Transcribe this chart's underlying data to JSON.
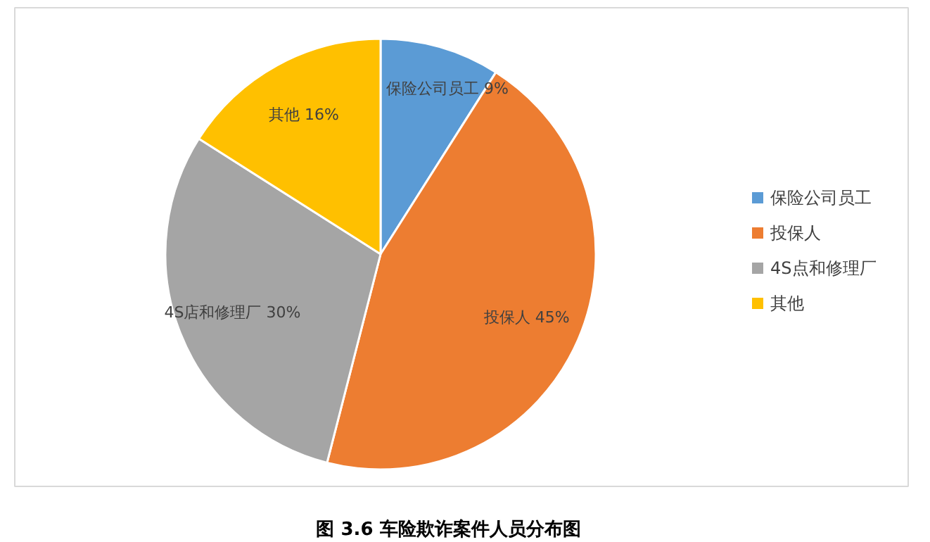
{
  "chart_data": {
    "type": "pie",
    "title": "图 3.6  车险欺诈案件人员分布图",
    "categories": [
      "保险公司员工",
      "投保人",
      "4S点和修理厂",
      "其他"
    ],
    "values": [
      9,
      45,
      30,
      16
    ],
    "colors": [
      "#5b9bd5",
      "#ed7d31",
      "#a5a5a5",
      "#ffc000"
    ],
    "value_labels": [
      "保险公司员工 9%",
      "投保人 45%",
      "4S店和修理厂 30%",
      "其他 16%"
    ],
    "legend": "right"
  }
}
